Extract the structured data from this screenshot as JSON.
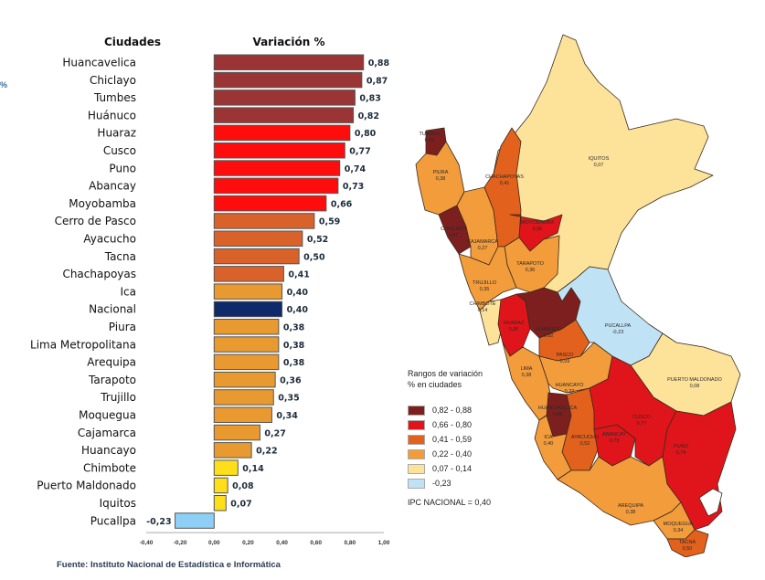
{
  "chart_data": {
    "type": "bar",
    "orientation": "horizontal",
    "column_headers": {
      "categories": "Ciudades",
      "values": "Variación %"
    },
    "categories": [
      "Huancavelica",
      "Chiclayo",
      "Tumbes",
      "Huánuco",
      "Huaraz",
      "Cusco",
      "Puno",
      "Abancay",
      "Moyobamba",
      "Cerro de Pasco",
      "Ayacucho",
      "Tacna",
      "Chachapoyas",
      "Ica",
      "Nacional",
      "Piura",
      "Lima Metropolitana",
      "Arequipa",
      "Tarapoto",
      "Trujillo",
      "Moquegua",
      "Cajamarca",
      "Huancayo",
      "Chimbote",
      "Puerto Maldonado",
      "Iquitos",
      "Pucallpa"
    ],
    "values": [
      0.88,
      0.87,
      0.83,
      0.82,
      0.8,
      0.77,
      0.74,
      0.73,
      0.66,
      0.59,
      0.52,
      0.5,
      0.41,
      0.4,
      0.4,
      0.38,
      0.38,
      0.38,
      0.36,
      0.35,
      0.34,
      0.27,
      0.22,
      0.14,
      0.08,
      0.07,
      -0.23
    ],
    "value_labels": [
      "0,88",
      "0,87",
      "0,83",
      "0,82",
      "0,80",
      "0,77",
      "0,74",
      "0,73",
      "0,66",
      "0,59",
      "0,52",
      "0,50",
      "0,41",
      "0,40",
      "0,40",
      "0,38",
      "0,38",
      "0,38",
      "0,36",
      "0,35",
      "0,34",
      "0,27",
      "0,22",
      "0,14",
      "0,08",
      "0,07",
      "-0,23"
    ],
    "color_groups": [
      "r1",
      "r1",
      "r1",
      "r1",
      "r2",
      "r2",
      "r2",
      "r2",
      "r2",
      "r3",
      "r3",
      "r3",
      "r3",
      "r4",
      "nac",
      "r4",
      "r4",
      "r4",
      "r4",
      "r4",
      "r4",
      "r4",
      "r4",
      "r5",
      "r5",
      "r5",
      "r6"
    ],
    "xlim": [
      -0.4,
      1.0
    ],
    "x_ticks": [
      -0.4,
      -0.2,
      0,
      0.2,
      0.4,
      0.6,
      0.8,
      1.0
    ],
    "x_tick_labels": [
      "-0,40",
      "-0,20",
      "0,00",
      "0,20",
      "0,40",
      "0,60",
      "0,80",
      "1,00"
    ],
    "grid": false,
    "title": "",
    "xlabel": "",
    "ylabel": ""
  },
  "colors": {
    "r1": "#9b3535",
    "r2": "#ff0d0d",
    "r3": "#d9622b",
    "r4": "#e89a30",
    "r5": "#ffdf1a",
    "r6": "#8ed0f5",
    "nac": "#0f2a6b"
  },
  "stray_mark": "%",
  "source": "Fuente: Instituto Nacional de Estadística e Informática",
  "map": {
    "legend": {
      "title_line1": "Rangos de variación",
      "title_line2": "% en ciudades",
      "items": [
        {
          "label": "0,82  -  0,88",
          "color": "#7d1f1f"
        },
        {
          "label": "0,66  -  0,80",
          "color": "#e0151b"
        },
        {
          "label": "0,41  -  0,59",
          "color": "#e2611c"
        },
        {
          "label": "0,22  -  0,40",
          "color": "#f29c3c"
        },
        {
          "label": "0,07  -  0,14",
          "color": "#fde39a"
        },
        {
          "label": "-0,23",
          "color": "#bfe3f5"
        }
      ],
      "national": "IPC NACIONAL =  0,40"
    },
    "labels": [
      {
        "name": "TUMBES",
        "value": "0,83"
      },
      {
        "name": "PIURA",
        "value": "0,38"
      },
      {
        "name": "CHICLAYO",
        "value": "0,87"
      },
      {
        "name": "CHACHAPOYAS",
        "value": "0,41"
      },
      {
        "name": "MOYOBAMBA",
        "value": "0,66"
      },
      {
        "name": "CAJAMARCA",
        "value": "0,27"
      },
      {
        "name": "TARAPOTO",
        "value": "0,36"
      },
      {
        "name": "TRUJILLO",
        "value": "0,35"
      },
      {
        "name": "IQUITOS",
        "value": "0,07"
      },
      {
        "name": "CHIMBOTE",
        "value": "0,14"
      },
      {
        "name": "HUARAZ",
        "value": "0,80"
      },
      {
        "name": "HUANUCO",
        "value": "0,82"
      },
      {
        "name": "PUCALLPA",
        "value": "-0,23"
      },
      {
        "name": "PASCO",
        "value": "0,59"
      },
      {
        "name": "LIMA",
        "value": "0,38"
      },
      {
        "name": "HUANCAYO",
        "value": "0,22"
      },
      {
        "name": "PUERTO MALDONADO",
        "value": "0,08"
      },
      {
        "name": "HUANCAVELICA",
        "value": "0,88"
      },
      {
        "name": "ICA",
        "value": "0,40"
      },
      {
        "name": "AYACUCHO",
        "value": "0,52"
      },
      {
        "name": "ABANCAY",
        "value": "0,73"
      },
      {
        "name": "CUSCO",
        "value": "0,77"
      },
      {
        "name": "PUNO",
        "value": "0,74"
      },
      {
        "name": "AREQUIPA",
        "value": "0,38"
      },
      {
        "name": "MOQUEGUA",
        "value": "0,34"
      },
      {
        "name": "TACNA",
        "value": "0,50"
      }
    ]
  }
}
